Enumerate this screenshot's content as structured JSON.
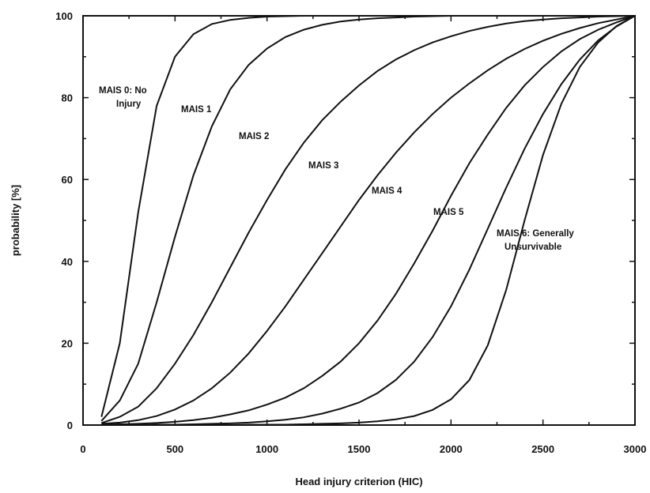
{
  "chart_data": {
    "type": "line",
    "title": "",
    "xlabel": "Head injury criterion (HIC)",
    "ylabel": "probability [%]",
    "xlim": [
      0,
      3000
    ],
    "ylim": [
      0,
      100
    ],
    "x_ticks": [
      0,
      500,
      1000,
      1500,
      2000,
      2500,
      3000
    ],
    "y_ticks": [
      0,
      20,
      40,
      60,
      80,
      100
    ],
    "grid": false,
    "x": [
      100,
      200,
      300,
      400,
      500,
      600,
      700,
      800,
      900,
      1000,
      1100,
      1200,
      1300,
      1400,
      1500,
      1600,
      1700,
      1800,
      1900,
      2000,
      2100,
      2200,
      2300,
      2400,
      2500,
      2600,
      2700,
      2800,
      2900,
      3000
    ],
    "series": [
      {
        "name": "MAIS 0: No Injury",
        "values": [
          2,
          20,
          52,
          78,
          90,
          95.5,
          98,
          99,
          99.5,
          99.8,
          99.9,
          100,
          100,
          100,
          100,
          100,
          100,
          100,
          100,
          100,
          100,
          100,
          100,
          100,
          100,
          100,
          100,
          100,
          100,
          100
        ]
      },
      {
        "name": "MAIS 1",
        "values": [
          1,
          6,
          15,
          30,
          46,
          61,
          73,
          82,
          88,
          92,
          94.8,
          96.6,
          97.8,
          98.6,
          99.1,
          99.4,
          99.6,
          99.8,
          99.9,
          100,
          100,
          100,
          100,
          100,
          100,
          100,
          100,
          100,
          100,
          100
        ]
      },
      {
        "name": "MAIS 2",
        "values": [
          0.5,
          2,
          4.5,
          9,
          15,
          22,
          30,
          38.5,
          47,
          55,
          62.5,
          69,
          74.5,
          79,
          83,
          86.5,
          89.3,
          91.6,
          93.5,
          95,
          96.3,
          97.3,
          98.1,
          98.7,
          99.1,
          99.4,
          99.6,
          99.8,
          99.9,
          100
        ]
      },
      {
        "name": "MAIS 3",
        "values": [
          0.3,
          0.6,
          1.2,
          2.2,
          3.8,
          6,
          9,
          12.8,
          17.5,
          23,
          29,
          35.5,
          42,
          48.5,
          55,
          61,
          66.5,
          71.5,
          76,
          80,
          83.5,
          86.7,
          89.5,
          91.9,
          93.9,
          95.6,
          97,
          98.2,
          99.1,
          100
        ]
      },
      {
        "name": "MAIS 4",
        "values": [
          0.1,
          0.2,
          0.3,
          0.5,
          0.8,
          1.2,
          1.8,
          2.6,
          3.6,
          5,
          6.7,
          9,
          12,
          15.5,
          20,
          25.5,
          32,
          39.5,
          47.5,
          56,
          64,
          71,
          77.5,
          83,
          87.5,
          91.3,
          94.3,
          96.6,
          98.4,
          100
        ]
      },
      {
        "name": "MAIS 5",
        "values": [
          0,
          0,
          0,
          0.1,
          0.1,
          0.2,
          0.3,
          0.4,
          0.6,
          0.9,
          1.3,
          1.9,
          2.8,
          4,
          5.5,
          7.8,
          11,
          15.5,
          21.5,
          29,
          38,
          48,
          58,
          67.5,
          76,
          83.3,
          89.3,
          94,
          97.4,
          100
        ]
      },
      {
        "name": "MAIS 6: Generally Unsurvivable",
        "values": [
          0,
          0,
          0,
          0,
          0,
          0,
          0,
          0,
          0.1,
          0.1,
          0.1,
          0.2,
          0.3,
          0.4,
          0.6,
          0.9,
          1.4,
          2.2,
          3.7,
          6.3,
          11,
          19.5,
          33,
          50,
          66,
          78.5,
          87.5,
          93.5,
          97.5,
          100
        ]
      }
    ],
    "annotations": [
      {
        "series": 0,
        "lines": [
          "MAIS 0: No",
          "Injury"
        ]
      },
      {
        "series": 1,
        "lines": [
          "MAIS 1"
        ]
      },
      {
        "series": 2,
        "lines": [
          "MAIS 2"
        ]
      },
      {
        "series": 3,
        "lines": [
          "MAIS 3"
        ]
      },
      {
        "series": 4,
        "lines": [
          "MAIS 4"
        ]
      },
      {
        "series": 5,
        "lines": [
          "MAIS 5"
        ]
      },
      {
        "series": 6,
        "lines": [
          "MAIS 6: Generally",
          "Unsurvivable"
        ]
      }
    ]
  }
}
